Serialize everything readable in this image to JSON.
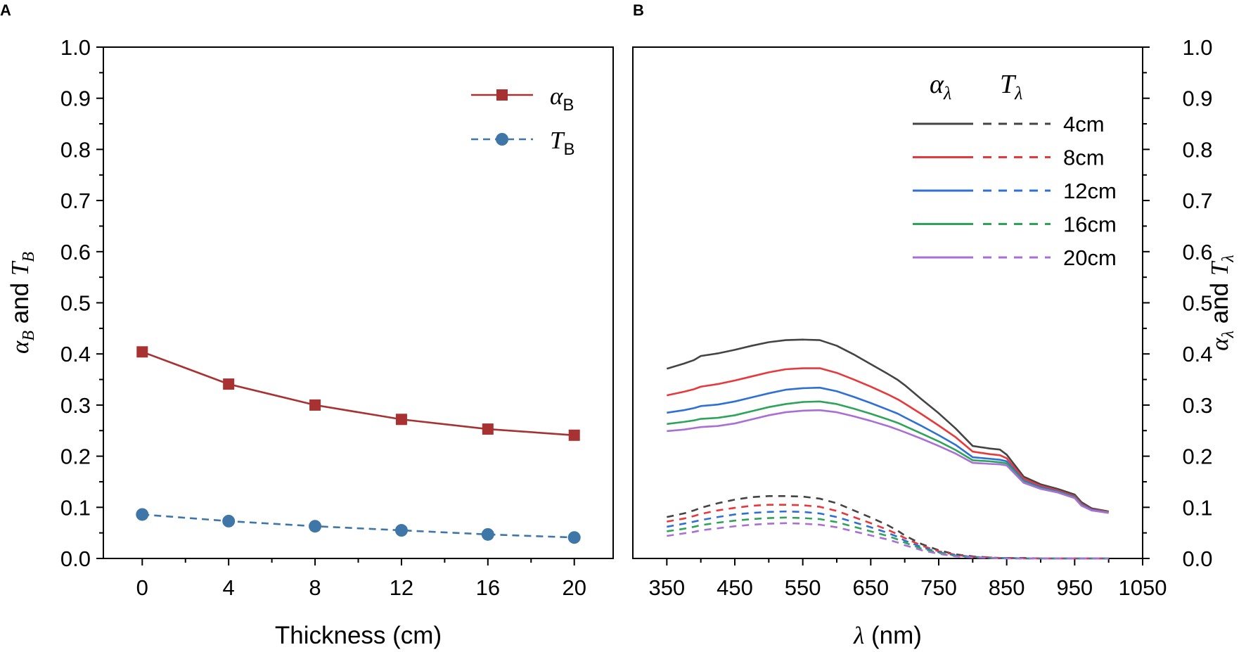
{
  "chart_data": [
    {
      "panel": "A",
      "type": "line",
      "xlabel": "Thickness (cm)",
      "ylabel": {
        "alpha": "α",
        "sub1": "B",
        "mid": " and ",
        "t": "T",
        "sub2": "B"
      },
      "xlim": [
        -1.8,
        21.8
      ],
      "ylim": [
        0,
        1
      ],
      "xticks": [
        0,
        4,
        8,
        12,
        16,
        20
      ],
      "xtick_labels": [
        "0",
        "4",
        "8",
        "12",
        "16",
        "20"
      ],
      "yticks": [
        0,
        0.1,
        0.2,
        0.3,
        0.4,
        0.5,
        0.6,
        0.7,
        0.8,
        0.9,
        1.0
      ],
      "ytick_labels": [
        "0.0",
        "0.1",
        "0.2",
        "0.3",
        "0.4",
        "0.5",
        "0.6",
        "0.7",
        "0.8",
        "0.9",
        "1.0"
      ],
      "x": [
        0,
        4,
        8,
        12,
        16,
        20
      ],
      "series": [
        {
          "name": "α_B",
          "symbol": "α",
          "subscript": "B",
          "color": "#A83232",
          "marker": "square",
          "dash": "solid",
          "values": [
            0.404,
            0.341,
            0.3,
            0.272,
            0.253,
            0.241
          ]
        },
        {
          "name": "T_B",
          "symbol": "T",
          "subscript": "B",
          "color": "#3F76A8",
          "marker": "circle",
          "dash": "dashed",
          "values": [
            0.086,
            0.073,
            0.063,
            0.055,
            0.047,
            0.041
          ]
        }
      ],
      "legend": "top-right"
    },
    {
      "panel": "B",
      "type": "line",
      "xlabel": {
        "lambda": "λ",
        "unit": " (nm)"
      },
      "ylabel": {
        "alpha": "α",
        "sub1": "λ",
        "mid": " and ",
        "t": "T",
        "sub2": "λ"
      },
      "xlim": [
        300,
        1050
      ],
      "ylim": [
        0,
        1
      ],
      "xticks": [
        350,
        450,
        550,
        650,
        750,
        850,
        950,
        1050
      ],
      "xtick_labels": [
        "350",
        "450",
        "550",
        "650",
        "750",
        "850",
        "950",
        "1050"
      ],
      "yticks": [
        0,
        0.1,
        0.2,
        0.3,
        0.4,
        0.5,
        0.6,
        0.7,
        0.8,
        0.9,
        1.0
      ],
      "ytick_labels": [
        "0.0",
        "0.1",
        "0.2",
        "0.3",
        "0.4",
        "0.5",
        "0.6",
        "0.7",
        "0.8",
        "0.9",
        "1.0"
      ],
      "legend_header": {
        "alpha": "α",
        "alpha_sub": "λ",
        "t": "T",
        "t_sub": "λ"
      },
      "legend": "top-right",
      "x": [
        350,
        375,
        390,
        400,
        425,
        450,
        475,
        500,
        525,
        550,
        575,
        600,
        625,
        650,
        675,
        690,
        700,
        725,
        750,
        775,
        800,
        825,
        840,
        850,
        875,
        900,
        925,
        950,
        960,
        975,
        1000
      ],
      "series": [
        {
          "name": "4cm",
          "color": "#444444",
          "alpha": [
            0.371,
            0.381,
            0.388,
            0.396,
            0.401,
            0.408,
            0.416,
            0.423,
            0.427,
            0.428,
            0.427,
            0.416,
            0.399,
            0.38,
            0.361,
            0.349,
            0.339,
            0.311,
            0.284,
            0.254,
            0.22,
            0.215,
            0.213,
            0.203,
            0.16,
            0.145,
            0.136,
            0.125,
            0.11,
            0.098,
            0.092
          ],
          "T": [
            0.081,
            0.088,
            0.094,
            0.099,
            0.108,
            0.115,
            0.12,
            0.122,
            0.122,
            0.121,
            0.117,
            0.108,
            0.094,
            0.08,
            0.065,
            0.054,
            0.045,
            0.028,
            0.016,
            0.008,
            0.004,
            0.002,
            0.001,
            0.001,
            0.001,
            0.0,
            0.0,
            0.0,
            0.0,
            0.0,
            0.0
          ]
        },
        {
          "name": "8cm",
          "color": "#E8383B",
          "alpha": [
            0.319,
            0.326,
            0.331,
            0.336,
            0.341,
            0.348,
            0.356,
            0.364,
            0.37,
            0.372,
            0.372,
            0.363,
            0.35,
            0.336,
            0.321,
            0.311,
            0.303,
            0.282,
            0.26,
            0.237,
            0.209,
            0.204,
            0.202,
            0.196,
            0.156,
            0.142,
            0.133,
            0.122,
            0.107,
            0.096,
            0.091
          ],
          "T": [
            0.072,
            0.078,
            0.083,
            0.087,
            0.094,
            0.099,
            0.103,
            0.105,
            0.105,
            0.104,
            0.101,
            0.093,
            0.081,
            0.069,
            0.056,
            0.047,
            0.04,
            0.025,
            0.014,
            0.007,
            0.003,
            0.002,
            0.001,
            0.001,
            0.0,
            0.0,
            0.0,
            0.0,
            0.0,
            0.0,
            0.0
          ]
        },
        {
          "name": "12cm",
          "color": "#2E6FD8",
          "alpha": [
            0.285,
            0.29,
            0.294,
            0.298,
            0.301,
            0.307,
            0.315,
            0.323,
            0.33,
            0.333,
            0.334,
            0.327,
            0.316,
            0.304,
            0.291,
            0.283,
            0.276,
            0.259,
            0.241,
            0.222,
            0.198,
            0.195,
            0.193,
            0.19,
            0.152,
            0.139,
            0.131,
            0.12,
            0.105,
            0.095,
            0.09
          ],
          "T": [
            0.062,
            0.068,
            0.072,
            0.075,
            0.081,
            0.086,
            0.089,
            0.091,
            0.092,
            0.091,
            0.088,
            0.081,
            0.071,
            0.061,
            0.05,
            0.042,
            0.035,
            0.022,
            0.012,
            0.006,
            0.003,
            0.001,
            0.001,
            0.001,
            0.0,
            0.0,
            0.0,
            0.0,
            0.0,
            0.0,
            0.0
          ]
        },
        {
          "name": "16cm",
          "color": "#2EA35A",
          "alpha": [
            0.263,
            0.267,
            0.27,
            0.273,
            0.275,
            0.28,
            0.288,
            0.296,
            0.302,
            0.306,
            0.307,
            0.302,
            0.293,
            0.283,
            0.272,
            0.265,
            0.259,
            0.244,
            0.229,
            0.212,
            0.192,
            0.19,
            0.188,
            0.186,
            0.15,
            0.137,
            0.13,
            0.119,
            0.104,
            0.094,
            0.09
          ],
          "T": [
            0.053,
            0.058,
            0.062,
            0.065,
            0.07,
            0.074,
            0.077,
            0.079,
            0.08,
            0.079,
            0.077,
            0.071,
            0.062,
            0.053,
            0.044,
            0.037,
            0.031,
            0.019,
            0.011,
            0.005,
            0.002,
            0.001,
            0.001,
            0.0,
            0.0,
            0.0,
            0.0,
            0.0,
            0.0,
            0.0,
            0.0
          ]
        },
        {
          "name": "20cm",
          "color": "#A96FD6",
          "alpha": [
            0.249,
            0.252,
            0.255,
            0.257,
            0.259,
            0.264,
            0.272,
            0.28,
            0.286,
            0.289,
            0.29,
            0.286,
            0.278,
            0.269,
            0.259,
            0.252,
            0.247,
            0.234,
            0.22,
            0.205,
            0.187,
            0.185,
            0.184,
            0.182,
            0.148,
            0.136,
            0.129,
            0.118,
            0.103,
            0.094,
            0.089
          ],
          "T": [
            0.044,
            0.049,
            0.052,
            0.055,
            0.059,
            0.063,
            0.066,
            0.068,
            0.069,
            0.068,
            0.066,
            0.061,
            0.053,
            0.045,
            0.037,
            0.031,
            0.026,
            0.016,
            0.009,
            0.004,
            0.002,
            0.001,
            0.0,
            0.0,
            0.0,
            0.0,
            0.0,
            0.0,
            0.0,
            0.0,
            0.0
          ]
        }
      ]
    }
  ],
  "labels": {
    "panel_a": "A",
    "panel_b": "B"
  }
}
